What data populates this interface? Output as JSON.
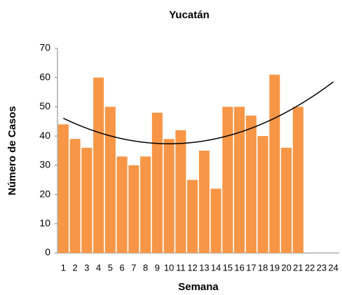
{
  "chart_data": {
    "type": "bar",
    "title": "Yucatán",
    "x_label": "Semana",
    "y_label": "Número de Casos",
    "categories": [
      "1",
      "2",
      "3",
      "4",
      "5",
      "6",
      "7",
      "8",
      "9",
      "10",
      "11",
      "12",
      "13",
      "14",
      "15",
      "16",
      "17",
      "18",
      "19",
      "20",
      "21",
      "22",
      "23",
      "24"
    ],
    "values": [
      44,
      39,
      36,
      60,
      50,
      33,
      30,
      33,
      48,
      39,
      42,
      25,
      35,
      22,
      50,
      50,
      47,
      40,
      61,
      36,
      50,
      null,
      null,
      null
    ],
    "color": "#f79646",
    "ylim": [
      0,
      70
    ],
    "yticks": [
      0,
      10,
      20,
      30,
      40,
      50,
      60,
      70
    ],
    "grid": false,
    "trendline": {
      "type": "polynomial",
      "order": 2,
      "color": "#000000"
    }
  }
}
